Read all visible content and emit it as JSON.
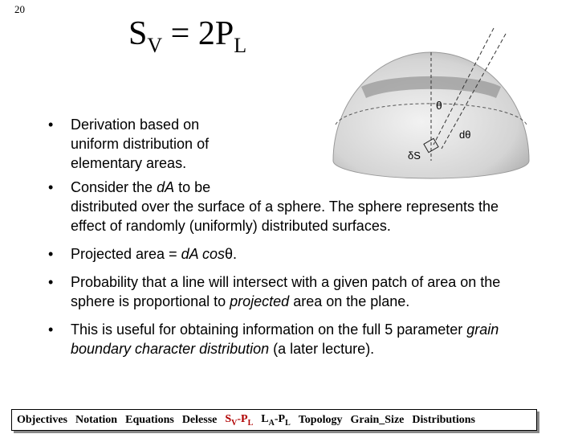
{
  "page_number": "20",
  "title": [
    "S",
    "V",
    " = 2P",
    "L"
  ],
  "figure": {
    "labels": [
      "θ",
      "dθ",
      "δS"
    ]
  },
  "bullets": [
    [
      "Derivation based on uniform distribution of elementary areas."
    ],
    [
      "Consider the ",
      "dA",
      " to be",
      "distributed over the surface of a sphere.  The sphere represents the effect of randomly (uniformly) distributed surfaces."
    ],
    [
      "Projected area = ",
      "dA cos",
      "θ",
      "."
    ],
    [
      "Probability that a line will intersect with a given patch of area on the sphere is proportional to ",
      "projected",
      " area on the plane."
    ],
    [
      "This is useful for obtaining information on the full 5 parameter ",
      "grain boundary character distribution",
      " (a later lecture)."
    ]
  ],
  "nav": [
    "Objectives",
    "Notation",
    "Equations",
    "Delesse",
    [
      "S",
      "V",
      "-P",
      "L"
    ],
    [
      "L",
      "A",
      "-P",
      "L"
    ],
    "Topology",
    "Grain_Size",
    "Distributions"
  ]
}
